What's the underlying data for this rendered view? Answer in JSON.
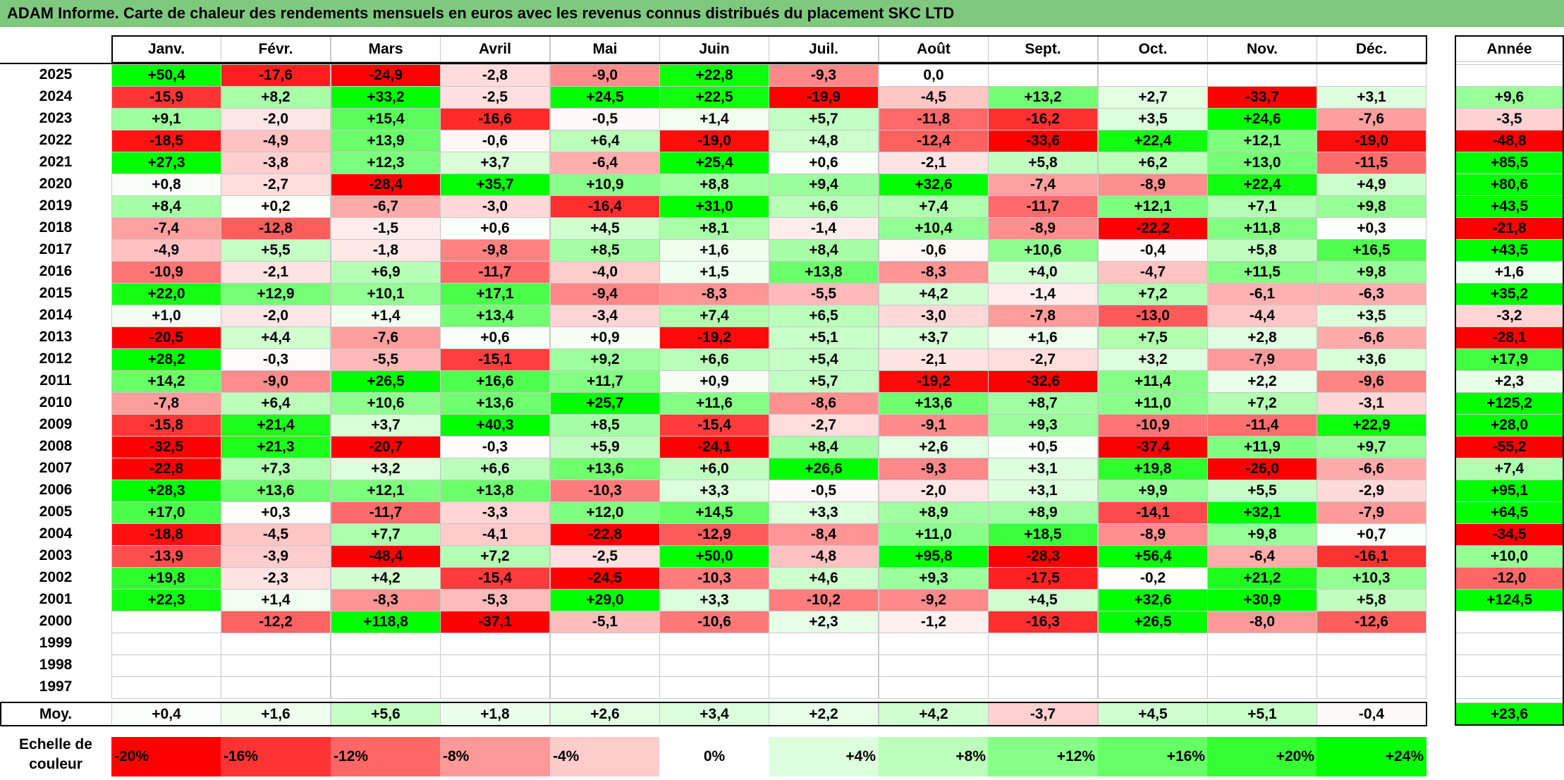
{
  "title": "ADAM Informe. Carte de chaleur des rendements mensuels en euros avec les revenus connus distribués du placement SKC LTD",
  "chart_data": {
    "type": "heatmap",
    "title": "ADAM Informe. Carte de chaleur des rendements mensuels en euros avec les revenus connus distribués du placement SKC LTD",
    "months": [
      "Janv.",
      "Févr.",
      "Mars",
      "Avril",
      "Mai",
      "Juin",
      "Juil.",
      "Août",
      "Sept.",
      "Oct.",
      "Nov.",
      "Déc."
    ],
    "annual_label": "Année",
    "years": [
      "2025",
      "2024",
      "2023",
      "2022",
      "2021",
      "2020",
      "2019",
      "2018",
      "2017",
      "2016",
      "2015",
      "2014",
      "2013",
      "2012",
      "2011",
      "2010",
      "2009",
      "2008",
      "2007",
      "2006",
      "2005",
      "2004",
      "2003",
      "2002",
      "2001",
      "2000",
      "1999",
      "1998",
      "1997"
    ],
    "values": [
      [
        "+50,4",
        "-17,6",
        "-24,9",
        "-2,8",
        "-9,0",
        "+22,8",
        "-9,3",
        "0,0",
        "",
        "",
        "",
        ""
      ],
      [
        "-15,9",
        "+8,2",
        "+33,2",
        "-2,5",
        "+24,5",
        "+22,5",
        "-19,9",
        "-4,5",
        "+13,2",
        "+2,7",
        "-33,7",
        "+3,1"
      ],
      [
        "+9,1",
        "-2,0",
        "+15,4",
        "-16,6",
        "-0,5",
        "+1,4",
        "+5,7",
        "-11,8",
        "-16,2",
        "+3,5",
        "+24,6",
        "-7,6"
      ],
      [
        "-18,5",
        "-4,9",
        "+13,9",
        "-0,6",
        "+6,4",
        "-19,0",
        "+4,8",
        "-12,4",
        "-33,6",
        "+22,4",
        "+12,1",
        "-19,0"
      ],
      [
        "+27,3",
        "-3,8",
        "+12,3",
        "+3,7",
        "-6,4",
        "+25,4",
        "+0,6",
        "-2,1",
        "+5,8",
        "+6,2",
        "+13,0",
        "-11,5"
      ],
      [
        "+0,8",
        "-2,7",
        "-28,4",
        "+35,7",
        "+10,9",
        "+8,8",
        "+9,4",
        "+32,6",
        "-7,4",
        "-8,9",
        "+22,4",
        "+4,9"
      ],
      [
        "+8,4",
        "+0,2",
        "-6,7",
        "-3,0",
        "-16,4",
        "+31,0",
        "+6,6",
        "+7,4",
        "-11,7",
        "+12,1",
        "+7,1",
        "+9,8"
      ],
      [
        "-7,4",
        "-12,8",
        "-1,5",
        "+0,6",
        "+4,5",
        "+8,1",
        "-1,4",
        "+10,4",
        "-8,9",
        "-22,2",
        "+11,8",
        "+0,3"
      ],
      [
        "-4,9",
        "+5,5",
        "-1,8",
        "-9,8",
        "+8,5",
        "+1,6",
        "+8,4",
        "-0,6",
        "+10,6",
        "-0,4",
        "+5,8",
        "+16,5"
      ],
      [
        "-10,9",
        "-2,1",
        "+6,9",
        "-11,7",
        "-4,0",
        "+1,5",
        "+13,8",
        "-8,3",
        "+4,0",
        "-4,7",
        "+11,5",
        "+9,8"
      ],
      [
        "+22,0",
        "+12,9",
        "+10,1",
        "+17,1",
        "-9,4",
        "-8,3",
        "-5,5",
        "+4,2",
        "-1,4",
        "+7,2",
        "-6,1",
        "-6,3"
      ],
      [
        "+1,0",
        "-2,0",
        "+1,4",
        "+13,4",
        "-3,4",
        "+7,4",
        "+6,5",
        "-3,0",
        "-7,8",
        "-13,0",
        "-4,4",
        "+3,5"
      ],
      [
        "-20,5",
        "+4,4",
        "-7,6",
        "+0,6",
        "+0,9",
        "-19,2",
        "+5,1",
        "+3,7",
        "+1,6",
        "+7,5",
        "+2,8",
        "-6,6"
      ],
      [
        "+28,2",
        "-0,3",
        "-5,5",
        "-15,1",
        "+9,2",
        "+6,6",
        "+5,4",
        "-2,1",
        "-2,7",
        "+3,2",
        "-7,9",
        "+3,6"
      ],
      [
        "+14,2",
        "-9,0",
        "+26,5",
        "+16,6",
        "+11,7",
        "+0,9",
        "+5,7",
        "-19,2",
        "-32,6",
        "+11,4",
        "+2,2",
        "-9,6"
      ],
      [
        "-7,8",
        "+6,4",
        "+10,6",
        "+13,6",
        "+25,7",
        "+11,6",
        "-8,6",
        "+13,6",
        "+8,7",
        "+11,0",
        "+7,2",
        "-3,1"
      ],
      [
        "-15,8",
        "+21,4",
        "+3,7",
        "+40,3",
        "+8,5",
        "-15,4",
        "-2,7",
        "-9,1",
        "+9,3",
        "-10,9",
        "-11,4",
        "+22,9"
      ],
      [
        "-32,5",
        "+21,3",
        "-20,7",
        "-0,3",
        "+5,9",
        "-24,1",
        "+8,4",
        "+2,6",
        "+0,5",
        "-37,4",
        "+11,9",
        "+9,7"
      ],
      [
        "-22,8",
        "+7,3",
        "+3,2",
        "+6,6",
        "+13,6",
        "+6,0",
        "+26,6",
        "-9,3",
        "+3,1",
        "+19,8",
        "-26,0",
        "-6,6"
      ],
      [
        "+28,3",
        "+13,6",
        "+12,1",
        "+13,8",
        "-10,3",
        "+3,3",
        "-0,5",
        "-2,0",
        "+3,1",
        "+9,9",
        "+5,5",
        "-2,9"
      ],
      [
        "+17,0",
        "+0,3",
        "-11,7",
        "-3,3",
        "+12,0",
        "+14,5",
        "+3,3",
        "+8,9",
        "+8,9",
        "-14,1",
        "+32,1",
        "-7,9"
      ],
      [
        "-18,8",
        "-4,5",
        "+7,7",
        "-4,1",
        "-22,8",
        "-12,9",
        "-8,4",
        "+11,0",
        "+18,5",
        "-8,9",
        "+9,8",
        "+0,7"
      ],
      [
        "-13,9",
        "-3,9",
        "-48,4",
        "+7,2",
        "-2,5",
        "+50,0",
        "-4,8",
        "+95,8",
        "-28,3",
        "+56,4",
        "-6,4",
        "-16,1"
      ],
      [
        "+19,8",
        "-2,3",
        "+4,2",
        "-15,4",
        "-24,5",
        "-10,3",
        "+4,6",
        "+9,3",
        "-17,5",
        "-0,2",
        "+21,2",
        "+10,3"
      ],
      [
        "+22,3",
        "+1,4",
        "-8,3",
        "-5,3",
        "+29,0",
        "+3,3",
        "-10,2",
        "-9,2",
        "+4,5",
        "+32,6",
        "+30,9",
        "+5,8"
      ],
      [
        "",
        "-12,2",
        "+118,8",
        "-37,1",
        "-5,1",
        "-10,6",
        "+2,3",
        "-1,2",
        "-16,3",
        "+26,5",
        "-8,0",
        "-12,6"
      ],
      [
        "",
        "",
        "",
        "",
        "",
        "",
        "",
        "",
        "",
        "",
        "",
        ""
      ],
      [
        "",
        "",
        "",
        "",
        "",
        "",
        "",
        "",
        "",
        "",
        "",
        ""
      ],
      [
        "",
        "",
        "",
        "",
        "",
        "",
        "",
        "",
        "",
        "",
        "",
        ""
      ]
    ],
    "annual": [
      "",
      "+9,6",
      "-3,5",
      "-48,8",
      "+85,5",
      "+80,6",
      "+43,5",
      "-21,8",
      "+43,5",
      "+1,6",
      "+35,2",
      "-3,2",
      "-28,1",
      "+17,9",
      "+2,3",
      "+125,2",
      "+28,0",
      "-55,2",
      "+7,4",
      "+95,1",
      "+64,5",
      "-34,5",
      "+10,0",
      "-12,0",
      "+124,5",
      "",
      "",
      "",
      ""
    ],
    "average_label": "Moy.",
    "averages": [
      "+0,4",
      "+1,6",
      "+5,6",
      "+1,8",
      "+2,6",
      "+3,4",
      "+2,2",
      "+4,2",
      "-3,7",
      "+4,5",
      "+5,1",
      "-0,4"
    ],
    "average_annual": "+23,6",
    "scale_label": "Echelle de couleur",
    "scale": [
      {
        "label": "-20%",
        "align": "left",
        "color": "#ff0000"
      },
      {
        "label": "-16%",
        "align": "left",
        "color": "#ff3333"
      },
      {
        "label": "-12%",
        "align": "left",
        "color": "#ff6666"
      },
      {
        "label": "-8%",
        "align": "left",
        "color": "#ff9999"
      },
      {
        "label": "-4%",
        "align": "left",
        "color": "#ffcccc"
      },
      {
        "label": "0%",
        "align": "center",
        "color": "#ffffff"
      },
      {
        "label": "+4%",
        "align": "right",
        "color": "#ddffdd"
      },
      {
        "label": "+8%",
        "align": "right",
        "color": "#bbffbb"
      },
      {
        "label": "+12%",
        "align": "right",
        "color": "#88ff88"
      },
      {
        "label": "+16%",
        "align": "right",
        "color": "#66ff66"
      },
      {
        "label": "+20%",
        "align": "right",
        "color": "#33ff33"
      },
      {
        "label": "+24%",
        "align": "right",
        "color": "#00ff00"
      }
    ],
    "colors": {
      "max_red": "#ff0000",
      "max_green": "#00ff00",
      "neutral": "#ffffff",
      "title_bar": "#7fc97f"
    }
  }
}
